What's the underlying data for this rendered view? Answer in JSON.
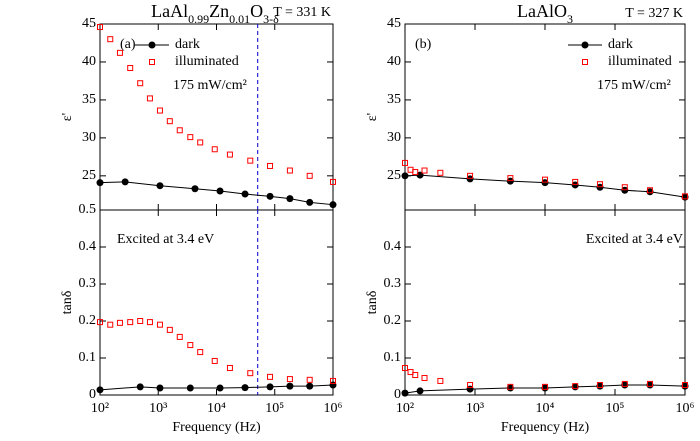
{
  "chart_data": [
    {
      "type": "line",
      "title": [
        {
          "text": "LaAl"
        },
        {
          "text": "0.99",
          "sub": true
        },
        {
          "text": "Zn"
        },
        {
          "text": "0.01",
          "sub": true
        },
        {
          "text": "O"
        },
        {
          "text": "3-δ",
          "sub": true
        }
      ],
      "ylabel": "ε'",
      "xscale": "log",
      "xlim": [
        100,
        1000000
      ],
      "ylim": [
        20.5,
        45
      ],
      "xticks": [
        100,
        1000,
        10000,
        100000,
        1000000
      ],
      "yticks": [
        25,
        30,
        35,
        40,
        45
      ],
      "legend": "upper center",
      "vline": 51000,
      "vline_color": "#0000cc",
      "annotations": [
        {
          "text": "(a)"
        },
        {
          "text": "T = 331 K"
        },
        {
          "text": "175 mW/cm²"
        }
      ],
      "series": [
        {
          "name": "dark",
          "color": "#000000",
          "marker": "circle",
          "x": [
            100,
            270,
            1070,
            4270,
            11500,
            30900,
            83000,
            182000,
            398000,
            1000000
          ],
          "values": [
            24.1,
            24.2,
            23.7,
            23.3,
            23.0,
            22.6,
            22.3,
            22.0,
            21.5,
            21.2
          ]
        },
        {
          "name": "illuminated",
          "color": "#ff0000",
          "marker": "square",
          "x": [
            100,
            150,
            220,
            330,
            490,
            720,
            1070,
            1580,
            2340,
            3550,
            5250,
            9330,
            17000,
            38000,
            83000,
            182000,
            398000,
            1000000
          ],
          "values": [
            44.6,
            43.0,
            41.2,
            39.2,
            37.2,
            35.2,
            33.6,
            32.2,
            31.0,
            30.1,
            29.4,
            28.5,
            27.8,
            27.0,
            26.3,
            25.7,
            25.0,
            24.2
          ]
        }
      ]
    },
    {
      "type": "line",
      "ylabel": "tanδ",
      "xlabel": "Frequency (Hz)",
      "xscale": "log",
      "xlim": [
        100,
        1000000
      ],
      "ylim": [
        0,
        0.5
      ],
      "xticks": [
        {
          "value": 100,
          "label": "10²"
        },
        {
          "value": 1000,
          "label": "10³"
        },
        {
          "value": 10000,
          "label": "10⁴"
        },
        {
          "value": 100000,
          "label": "10⁵"
        },
        {
          "value": 1000000,
          "label": "10⁶"
        }
      ],
      "yticks": [
        0,
        0.1,
        0.2,
        0.3,
        0.4,
        0.5
      ],
      "vline": 51000,
      "vline_color": "#0000cc",
      "annotations": [
        {
          "text": "Excited at 3.4 eV"
        }
      ],
      "series": [
        {
          "name": "dark",
          "color": "#000000",
          "marker": "circle",
          "x": [
            100,
            490,
            1070,
            3550,
            11500,
            30900,
            83000,
            182000,
            398000,
            1000000
          ],
          "values": [
            0.014,
            0.022,
            0.019,
            0.019,
            0.019,
            0.02,
            0.022,
            0.024,
            0.024,
            0.027
          ]
        },
        {
          "name": "illuminated",
          "color": "#ff0000",
          "marker": "square",
          "x": [
            100,
            150,
            220,
            330,
            490,
            720,
            1070,
            1580,
            2340,
            3550,
            5250,
            9330,
            17000,
            38000,
            83000,
            182000,
            398000,
            1000000
          ],
          "values": [
            0.197,
            0.19,
            0.195,
            0.197,
            0.2,
            0.197,
            0.19,
            0.176,
            0.157,
            0.135,
            0.116,
            0.092,
            0.073,
            0.059,
            0.049,
            0.043,
            0.041,
            0.038
          ]
        }
      ]
    },
    {
      "type": "line",
      "title": [
        {
          "text": "LaAlO"
        },
        {
          "text": "3",
          "sub": true
        }
      ],
      "ylabel": "ε'",
      "xscale": "log",
      "xlim": [
        100,
        1000000
      ],
      "ylim": [
        20.5,
        45
      ],
      "xticks": [
        100,
        1000,
        10000,
        100000,
        1000000
      ],
      "yticks": [
        25,
        30,
        35,
        40,
        45
      ],
      "legend": "upper right",
      "annotations": [
        {
          "text": "(b)"
        },
        {
          "text": "T = 327 K"
        },
        {
          "text": "175 mW/cm²"
        }
      ],
      "series": [
        {
          "name": "dark",
          "color": "#000000",
          "marker": "circle",
          "x": [
            100,
            164,
            850,
            3200,
            10000,
            27000,
            61000,
            138000,
            316000,
            1000000
          ],
          "values": [
            25.0,
            25.1,
            24.6,
            24.3,
            24.1,
            23.8,
            23.5,
            23.1,
            22.9,
            22.2
          ]
        },
        {
          "name": "illuminated",
          "color": "#ff0000",
          "marker": "square",
          "x": [
            100,
            120,
            140,
            190,
            320,
            850,
            3200,
            10000,
            27000,
            61000,
            138000,
            316000,
            1000000
          ],
          "values": [
            26.7,
            25.8,
            25.5,
            25.7,
            25.4,
            25.0,
            24.7,
            24.5,
            24.2,
            23.9,
            23.5,
            23.1,
            22.3
          ]
        }
      ]
    },
    {
      "type": "line",
      "ylabel": "tanδ",
      "xlabel": "Frequency (Hz)",
      "xscale": "log",
      "xlim": [
        100,
        1000000
      ],
      "ylim": [
        0,
        0.5
      ],
      "xticks": [
        {
          "value": 100,
          "label": "10²"
        },
        {
          "value": 1000,
          "label": "10³"
        },
        {
          "value": 10000,
          "label": "10⁴"
        },
        {
          "value": 100000,
          "label": "10⁵"
        },
        {
          "value": 1000000,
          "label": "10⁶"
        }
      ],
      "yticks": [
        0,
        0.1,
        0.2,
        0.3,
        0.4
      ],
      "annotations": [
        {
          "text": "Excited at 3.4 eV"
        }
      ],
      "series": [
        {
          "name": "dark",
          "color": "#000000",
          "marker": "circle",
          "x": [
            100,
            164,
            850,
            3200,
            10000,
            27000,
            61000,
            138000,
            316000,
            1000000
          ],
          "values": [
            0.005,
            0.011,
            0.016,
            0.019,
            0.019,
            0.022,
            0.024,
            0.027,
            0.027,
            0.024
          ]
        },
        {
          "name": "illuminated",
          "color": "#ff0000",
          "marker": "square",
          "x": [
            100,
            120,
            140,
            190,
            320,
            850,
            3200,
            10000,
            27000,
            61000,
            138000,
            316000,
            1000000
          ],
          "values": [
            0.073,
            0.062,
            0.054,
            0.046,
            0.038,
            0.027,
            0.022,
            0.022,
            0.024,
            0.027,
            0.03,
            0.03,
            0.027
          ]
        }
      ]
    }
  ]
}
